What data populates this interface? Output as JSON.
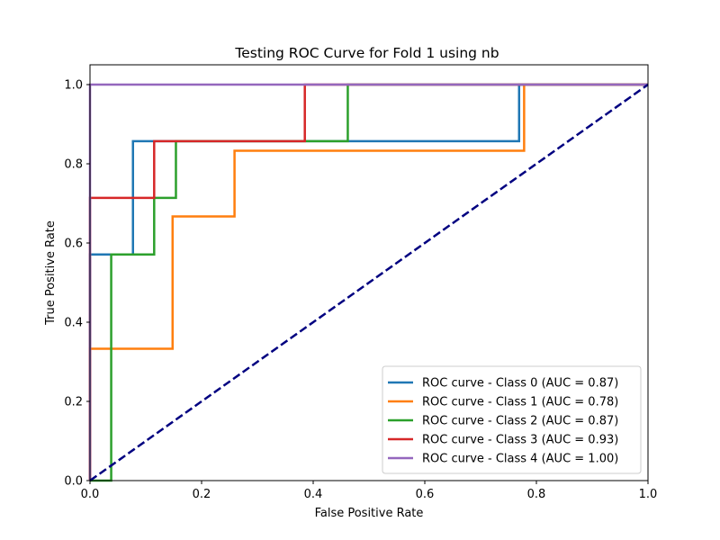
{
  "chart_data": {
    "type": "line",
    "title": "Testing ROC Curve for Fold 1 using nb",
    "xlabel": "False Positive Rate",
    "ylabel": "True Positive Rate",
    "xlim": [
      0.0,
      1.0
    ],
    "ylim": [
      0.0,
      1.05
    ],
    "xticks": [
      0.0,
      0.2,
      0.4,
      0.6,
      0.8,
      1.0
    ],
    "xtick_labels": [
      "0.0",
      "0.2",
      "0.4",
      "0.6",
      "0.8",
      "1.0"
    ],
    "yticks": [
      0.0,
      0.2,
      0.4,
      0.6,
      0.8,
      1.0
    ],
    "ytick_labels": [
      "0.0",
      "0.2",
      "0.4",
      "0.6",
      "0.8",
      "1.0"
    ],
    "grid": false,
    "legend_position": "lower-right",
    "series": [
      {
        "name": "ROC curve - Class 0 (AUC = 0.87)",
        "color": "#1f77b4",
        "x": [
          0.0,
          0.0,
          0.077,
          0.077,
          0.769,
          0.769,
          1.0
        ],
        "y": [
          0.0,
          0.571,
          0.571,
          0.857,
          0.857,
          1.0,
          1.0
        ]
      },
      {
        "name": "ROC curve - Class 1 (AUC = 0.78)",
        "color": "#ff7f0e",
        "x": [
          0.0,
          0.0,
          0.148,
          0.148,
          0.259,
          0.259,
          0.778,
          0.778,
          1.0
        ],
        "y": [
          0.0,
          0.333,
          0.333,
          0.667,
          0.667,
          0.833,
          0.833,
          1.0,
          1.0
        ]
      },
      {
        "name": "ROC curve - Class 2 (AUC = 0.87)",
        "color": "#2ca02c",
        "x": [
          0.0,
          0.038,
          0.038,
          0.115,
          0.115,
          0.154,
          0.154,
          0.462,
          0.462,
          1.0
        ],
        "y": [
          0.0,
          0.0,
          0.571,
          0.571,
          0.714,
          0.714,
          0.857,
          0.857,
          1.0,
          1.0
        ]
      },
      {
        "name": "ROC curve - Class 3 (AUC = 0.93)",
        "color": "#d62728",
        "x": [
          0.0,
          0.0,
          0.115,
          0.115,
          0.385,
          0.385,
          1.0
        ],
        "y": [
          0.0,
          0.714,
          0.714,
          0.857,
          0.857,
          1.0,
          1.0
        ]
      },
      {
        "name": "ROC curve - Class 4 (AUC = 1.00)",
        "color": "#9467bd",
        "x": [
          0.0,
          0.0,
          1.0
        ],
        "y": [
          0.0,
          1.0,
          1.0
        ]
      }
    ],
    "reference_line": {
      "x": [
        0.0,
        1.0
      ],
      "y": [
        0.0,
        1.0
      ],
      "color": "#000080",
      "style": "dashed"
    }
  }
}
